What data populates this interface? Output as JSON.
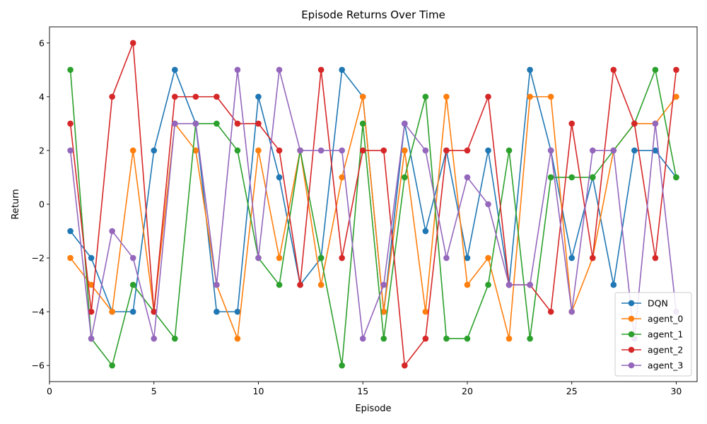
{
  "chart_data": {
    "type": "line",
    "title": "Episode Returns Over Time",
    "xlabel": "Episode",
    "ylabel": "Return",
    "xlim": [
      0,
      31
    ],
    "ylim": [
      -6.6,
      6.6
    ],
    "xticks": [
      0,
      5,
      10,
      15,
      20,
      25,
      30
    ],
    "yticks": [
      -6,
      -4,
      -2,
      0,
      2,
      4,
      6
    ],
    "grid": false,
    "legend_position": "lower-right",
    "x": [
      1,
      2,
      3,
      4,
      5,
      6,
      7,
      8,
      9,
      10,
      11,
      12,
      13,
      14,
      15,
      16,
      17,
      18,
      19,
      20,
      21,
      22,
      23,
      24,
      25,
      26,
      27,
      28,
      29,
      30
    ],
    "series": [
      {
        "name": "DQN",
        "color": "#1f77b4",
        "values": [
          -1,
          -2,
          -4,
          -4,
          2,
          5,
          3,
          -4,
          -4,
          4,
          1,
          -3,
          -2,
          5,
          4,
          -4,
          3,
          -1,
          2,
          -2,
          2,
          -3,
          5,
          2,
          -2,
          1,
          -3,
          2,
          2,
          1
        ]
      },
      {
        "name": "agent_0",
        "color": "#ff7f0e",
        "values": [
          -2,
          -3,
          -4,
          2,
          -4,
          3,
          2,
          -3,
          -5,
          2,
          -2,
          2,
          -3,
          1,
          4,
          -4,
          2,
          -4,
          4,
          -3,
          -2,
          -5,
          4,
          4,
          -4,
          -2,
          2,
          3,
          3,
          4
        ]
      },
      {
        "name": "agent_1",
        "color": "#2ca02c",
        "values": [
          5,
          -5,
          -6,
          -3,
          -4,
          -5,
          3,
          3,
          2,
          -2,
          -3,
          2,
          -2,
          -6,
          3,
          -5,
          1,
          4,
          -5,
          -5,
          -3,
          2,
          -5,
          1,
          1,
          1,
          2,
          3,
          5,
          1
        ]
      },
      {
        "name": "agent_2",
        "color": "#d62728",
        "values": [
          3,
          -4,
          4,
          6,
          -4,
          4,
          4,
          4,
          3,
          3,
          2,
          -3,
          5,
          -2,
          2,
          2,
          -6,
          -5,
          2,
          2,
          4,
          -3,
          -3,
          -4,
          3,
          -2,
          5,
          3,
          -2,
          5
        ]
      },
      {
        "name": "agent_3",
        "color": "#9467bd",
        "values": [
          2,
          -5,
          -1,
          -2,
          -5,
          3,
          3,
          -3,
          5,
          -2,
          5,
          2,
          2,
          2,
          -5,
          -3,
          3,
          2,
          -2,
          1,
          0,
          -3,
          -3,
          2,
          -4,
          2,
          2,
          -5,
          3,
          -4
        ]
      }
    ]
  }
}
